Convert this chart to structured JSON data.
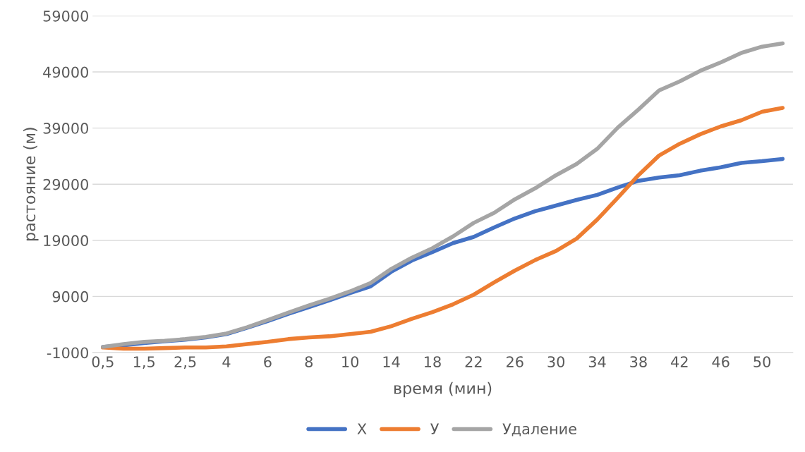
{
  "chart_data": {
    "type": "line",
    "xlabel": "время (мин)",
    "ylabel": "растояние (м)",
    "categories": [
      "0,5",
      null,
      "1,5",
      null,
      "2,5",
      null,
      "4",
      null,
      "6",
      null,
      "8",
      null,
      "10",
      null,
      "14",
      null,
      "18",
      null,
      "22",
      null,
      "26",
      null,
      "30",
      null,
      "34",
      null,
      "38",
      null,
      "42",
      null,
      "46",
      null,
      "50",
      null
    ],
    "series": [
      {
        "name": "X",
        "color": "#4472c4",
        "values": [
          0,
          300,
          700,
          1000,
          1300,
          1700,
          2300,
          3400,
          4600,
          5900,
          7100,
          8300,
          9600,
          10800,
          13400,
          15400,
          16900,
          18500,
          19600,
          21300,
          22900,
          24200,
          25200,
          26200,
          27100,
          28400,
          29600,
          30200,
          30600,
          31400,
          32000,
          32800,
          33100,
          33500
        ]
      },
      {
        "name": "У",
        "color": "#ed7d31",
        "values": [
          -100,
          -300,
          -300,
          -200,
          -100,
          -100,
          100,
          500,
          900,
          1400,
          1700,
          1900,
          2300,
          2700,
          3700,
          5000,
          6200,
          7600,
          9300,
          11500,
          13600,
          15500,
          17100,
          19300,
          22700,
          26600,
          30600,
          34100,
          36200,
          37900,
          39300,
          40400,
          41900,
          42600
        ]
      },
      {
        "name": "Удаление",
        "color": "#a5a5a5",
        "values": [
          0,
          500,
          900,
          1100,
          1400,
          1800,
          2400,
          3500,
          4800,
          6100,
          7400,
          8600,
          9900,
          11400,
          13900,
          15900,
          17600,
          19700,
          22100,
          23900,
          26300,
          28300,
          30600,
          32600,
          35300,
          39100,
          42300,
          45700,
          47300,
          49200,
          50700,
          52400,
          53500,
          54100
        ]
      }
    ],
    "ylim": [
      -1000,
      59000
    ],
    "yticks": [
      -1000,
      9000,
      19000,
      29000,
      39000,
      49000,
      59000
    ],
    "grid": "y",
    "legend": "bottom"
  }
}
